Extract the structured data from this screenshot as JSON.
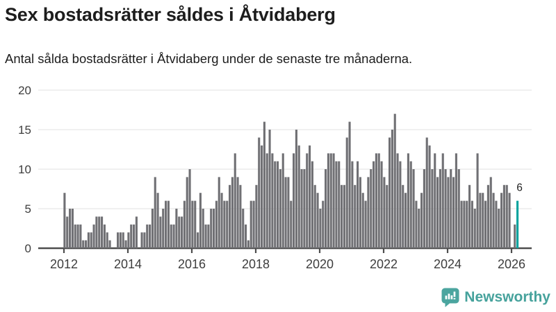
{
  "header": {
    "title": "Sex bostadsrätter såldes i Åtvidaberg",
    "subtitle": "Antal sålda bostadsrätter i Åtvidaberg under de senaste tre månaderna."
  },
  "chart_data": {
    "type": "bar",
    "title": "Sex bostadsrätter såldes i Åtvidaberg",
    "subtitle": "Antal sålda bostadsrätter i Åtvidaberg under de senaste tre månaderna.",
    "xlabel": "",
    "ylabel": "",
    "frequency": "monthly",
    "x_start": "2012-01",
    "x_end": "2026-03",
    "x_tick_labels": [
      "2012",
      "2014",
      "2016",
      "2018",
      "2020",
      "2022",
      "2024",
      "2026"
    ],
    "y_ticks": [
      0,
      5,
      10,
      15,
      20
    ],
    "ylim": [
      0,
      20
    ],
    "grid": true,
    "legend": "none",
    "values": [
      7,
      4,
      5,
      5,
      3,
      3,
      3,
      1,
      1,
      2,
      2,
      3,
      4,
      4,
      4,
      3,
      2,
      1,
      0,
      0,
      2,
      2,
      2,
      1,
      2,
      3,
      3,
      4,
      0,
      2,
      2,
      3,
      3,
      5,
      9,
      7,
      4,
      5,
      6,
      6,
      3,
      3,
      5,
      4,
      4,
      6,
      9,
      10,
      6,
      6,
      2,
      7,
      5,
      3,
      3,
      5,
      5,
      6,
      9,
      7,
      6,
      6,
      8,
      9,
      12,
      9,
      8,
      5,
      3,
      1,
      6,
      6,
      8,
      14,
      13,
      16,
      12,
      15,
      12,
      11,
      11,
      10,
      12,
      9,
      9,
      6,
      12,
      15,
      13,
      10,
      10,
      12,
      13,
      11,
      8,
      7,
      5,
      6,
      10,
      12,
      12,
      12,
      11,
      11,
      8,
      8,
      14,
      16,
      11,
      8,
      11,
      9,
      7,
      6,
      9,
      10,
      11,
      12,
      12,
      11,
      9,
      8,
      14,
      15,
      17,
      12,
      11,
      8,
      7,
      12,
      11,
      10,
      6,
      5,
      7,
      10,
      14,
      13,
      10,
      12,
      9,
      10,
      12,
      10,
      9,
      10,
      9,
      12,
      10,
      6,
      6,
      6,
      8,
      6,
      5,
      12,
      7,
      7,
      6,
      8,
      9,
      7,
      6,
      5,
      7,
      8,
      8,
      7,
      0,
      3,
      6
    ],
    "highlight_last": true,
    "highlight_value_label": "6",
    "bar_color": "#707074",
    "highlight_color": "#00a39e",
    "gridline_color": "#e6e6e6",
    "axis_color": "#4d4d4d",
    "tick_label_color": "#3d3d3d",
    "annotation_color": "#1e1e1e"
  },
  "footer": {
    "brand": "Newsworthy",
    "logo_icon": "bar-chart-speech-bubble-icon",
    "brand_color": "#46a29c",
    "icon_color": "#4ba59f"
  }
}
